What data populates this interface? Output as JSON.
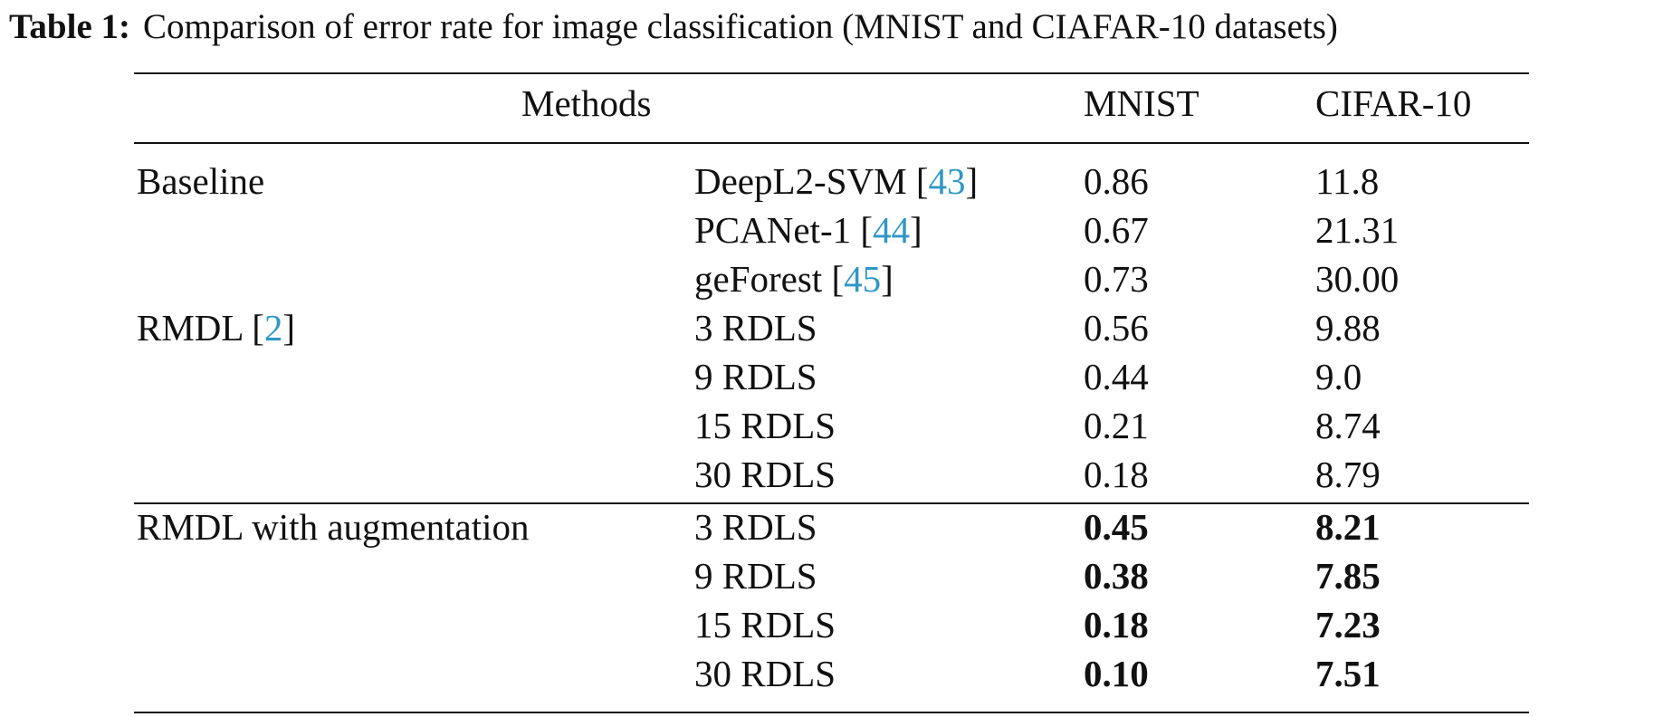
{
  "caption": {
    "label": "Table 1:",
    "text": "Comparison of error rate for image classification (MNIST and CIAFAR-10 datasets)"
  },
  "header": {
    "methods": "Methods",
    "mnist": "MNIST",
    "cifar": "CIFAR-10"
  },
  "rows": [
    {
      "group": "Baseline",
      "group_cite": "",
      "method": "DeepL2-SVM",
      "cite": "43",
      "mnist": "0.86",
      "cifar": "11.8"
    },
    {
      "group": "",
      "group_cite": "",
      "method": "PCANet-1",
      "cite": "44",
      "mnist": "0.67",
      "cifar": "21.31"
    },
    {
      "group": "",
      "group_cite": "",
      "method": "geForest",
      "cite": "45",
      "mnist": "0.73",
      "cifar": "30.00"
    },
    {
      "group": "RMDL",
      "group_cite": "2",
      "method": "3 RDLS",
      "cite": "",
      "mnist": "0.56",
      "cifar": "9.88"
    },
    {
      "group": "",
      "group_cite": "",
      "method": "9 RDLS",
      "cite": "",
      "mnist": "0.44",
      "cifar": "9.0"
    },
    {
      "group": "",
      "group_cite": "",
      "method": "15 RDLS",
      "cite": "",
      "mnist": "0.21",
      "cifar": "8.74"
    },
    {
      "group": "",
      "group_cite": "",
      "method": "30 RDLS",
      "cite": "",
      "mnist": "0.18",
      "cifar": "8.79"
    },
    {
      "group": "RMDL with augmentation",
      "group_cite": "",
      "method": "3 RDLS",
      "cite": "",
      "mnist": "0.45",
      "cifar": "8.21",
      "bold": true
    },
    {
      "group": "",
      "group_cite": "",
      "method": "9 RDLS",
      "cite": "",
      "mnist": "0.38",
      "cifar": "7.85",
      "bold": true
    },
    {
      "group": "",
      "group_cite": "",
      "method": "15 RDLS",
      "cite": "",
      "mnist": "0.18",
      "cifar": "7.23",
      "bold": true
    },
    {
      "group": "",
      "group_cite": "",
      "method": "30 RDLS",
      "cite": "",
      "mnist": "0.10",
      "cifar": "7.51",
      "bold": true
    }
  ]
}
